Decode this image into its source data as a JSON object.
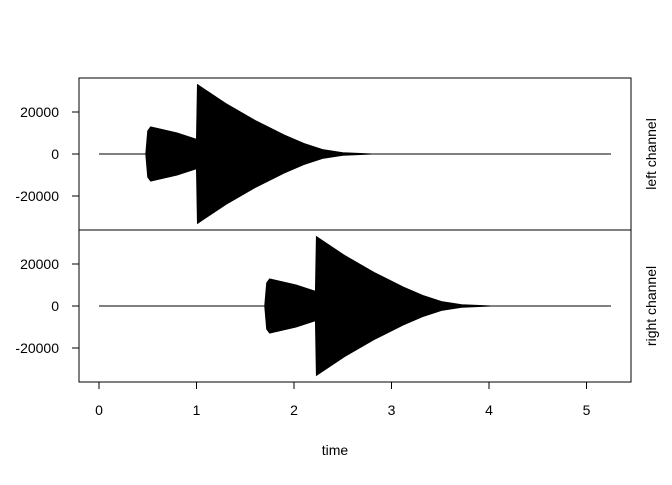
{
  "chart_data": {
    "type": "line",
    "xlabel": "time",
    "xlim": [
      0,
      5.25
    ],
    "xticks": [
      "0",
      "1",
      "2",
      "3",
      "4",
      "5"
    ],
    "grid": false,
    "panels": [
      {
        "ylabel": "left channel",
        "ylim": [
          -36000,
          36000
        ],
        "yticks": [
          "20000",
          "0",
          "-20000"
        ],
        "envelope": [
          [
            0,
            0
          ],
          [
            0.48,
            0
          ],
          [
            0.5,
            11000
          ],
          [
            0.53,
            12900
          ],
          [
            0.8,
            10000
          ],
          [
            1.0,
            7000
          ],
          [
            1.01,
            33000
          ],
          [
            1.3,
            24000
          ],
          [
            1.6,
            16000
          ],
          [
            1.9,
            9000
          ],
          [
            2.1,
            5000
          ],
          [
            2.3,
            2000
          ],
          [
            2.5,
            600
          ],
          [
            2.8,
            0
          ],
          [
            5.25,
            0
          ]
        ]
      },
      {
        "ylabel": "right channel",
        "ylim": [
          -36000,
          36000
        ],
        "yticks": [
          "20000",
          "0",
          "-20000"
        ],
        "envelope": [
          [
            0,
            0
          ],
          [
            1.7,
            0
          ],
          [
            1.72,
            11000
          ],
          [
            1.75,
            12900
          ],
          [
            2.02,
            10000
          ],
          [
            2.22,
            7000
          ],
          [
            2.23,
            33000
          ],
          [
            2.52,
            24000
          ],
          [
            2.82,
            16000
          ],
          [
            3.12,
            9000
          ],
          [
            3.32,
            5000
          ],
          [
            3.52,
            2000
          ],
          [
            3.72,
            600
          ],
          [
            4.02,
            0
          ],
          [
            5.25,
            0
          ]
        ]
      }
    ]
  }
}
